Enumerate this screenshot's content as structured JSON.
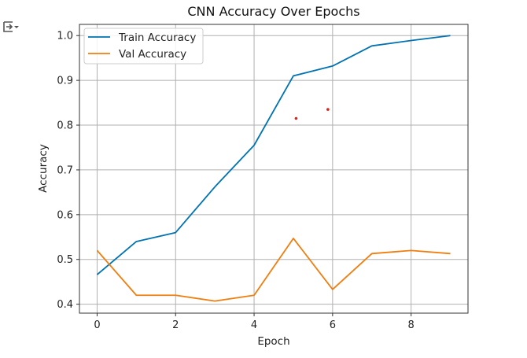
{
  "cell": {
    "output_icon": "output-toggle-icon"
  },
  "colors": {
    "train": "#0072B2",
    "val": "#F07E0F",
    "grid": "#b0b0b0",
    "marker": "#e0201b"
  },
  "chart_data": {
    "type": "line",
    "title": "CNN Accuracy Over Epochs",
    "xlabel": "Epoch",
    "ylabel": "Accuracy",
    "xlim": [
      -0.45,
      9.45
    ],
    "ylim": [
      0.38,
      1.025
    ],
    "x_ticks": [
      0,
      2,
      4,
      6,
      8
    ],
    "y_ticks": [
      0.4,
      0.5,
      0.6,
      0.7,
      0.8,
      0.9,
      1.0
    ],
    "x_tick_labels": [
      "0",
      "2",
      "4",
      "6",
      "8"
    ],
    "y_tick_labels": [
      "0.4",
      "0.5",
      "0.6",
      "0.7",
      "0.8",
      "0.9",
      "1.0"
    ],
    "grid": true,
    "legend_position": "top-left",
    "x": [
      0,
      1,
      2,
      3,
      4,
      5,
      6,
      7,
      8,
      9
    ],
    "series": [
      {
        "name": "Train Accuracy",
        "color": "#0072B2",
        "values": [
          0.466,
          0.54,
          0.56,
          0.662,
          0.755,
          0.91,
          0.932,
          0.977,
          0.989,
          1.0
        ]
      },
      {
        "name": "Val Accuracy",
        "color": "#F07E0F",
        "values": [
          0.52,
          0.42,
          0.42,
          0.407,
          0.42,
          0.547,
          0.433,
          0.513,
          0.52,
          0.513
        ]
      }
    ],
    "annotations": [
      {
        "type": "dot",
        "x": 5.07,
        "y": 0.815,
        "color": "#e0201b"
      },
      {
        "type": "dot",
        "x": 5.88,
        "y": 0.835,
        "color": "#e0201b"
      }
    ]
  }
}
